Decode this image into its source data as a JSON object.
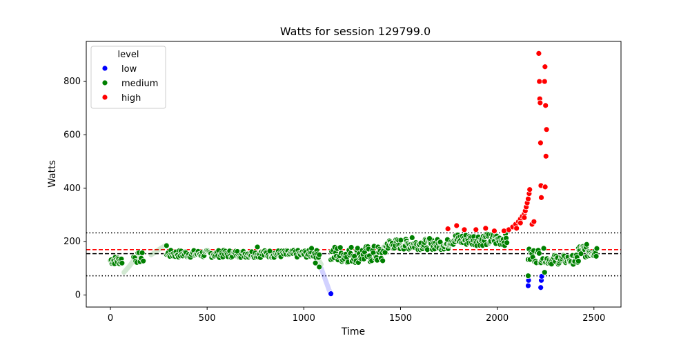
{
  "chart_data": {
    "type": "scatter",
    "title": "Watts for session 129799.0",
    "xlabel": "Time",
    "ylabel": "Watts",
    "xlim": [
      -125,
      2640
    ],
    "ylim": [
      -45,
      950
    ],
    "xticks": [
      0,
      500,
      1000,
      1500,
      2000,
      2500
    ],
    "yticks": [
      0,
      200,
      400,
      600,
      800
    ],
    "grid": false,
    "legend": {
      "title": "level",
      "placement": "top-left",
      "entries": [
        {
          "label": "low",
          "color": "#0000ff"
        },
        {
          "label": "medium",
          "color": "#008000"
        },
        {
          "label": "high",
          "color": "#ff0000"
        }
      ]
    },
    "reference_lines": [
      {
        "y": 233,
        "color": "#000000",
        "style": "dotted"
      },
      {
        "y": 170,
        "color": "#ff0000",
        "style": "dashed"
      },
      {
        "y": 155,
        "color": "#000000",
        "style": "dashed"
      },
      {
        "y": 72,
        "color": "#000000",
        "style": "dotted"
      }
    ],
    "faded_trails": [
      {
        "level": "medium",
        "points": [
          [
            70,
            85
          ],
          [
            100,
            110
          ],
          [
            130,
            140
          ],
          [
            150,
            150
          ]
        ]
      },
      {
        "level": "medium",
        "points": [
          [
            210,
            150
          ],
          [
            260,
            175
          ],
          [
            290,
            188
          ]
        ]
      },
      {
        "level": "medium",
        "points": [
          [
            1050,
            155
          ],
          [
            1070,
            140
          ],
          [
            1090,
            115
          ]
        ]
      },
      {
        "level": "low",
        "points": [
          [
            1090,
            100
          ],
          [
            1110,
            60
          ],
          [
            1130,
            20
          ],
          [
            1140,
            5
          ]
        ]
      }
    ],
    "series": [
      {
        "name": "low",
        "color": "#0000ff",
        "points": [
          [
            1140,
            5
          ],
          [
            2160,
            35
          ],
          [
            2162,
            55
          ],
          [
            2225,
            28
          ],
          [
            2228,
            55
          ],
          [
            2230,
            70
          ]
        ]
      },
      {
        "name": "medium",
        "color": "#008000",
        "segments": [
          {
            "x0": 0,
            "x1": 60,
            "y0": 115,
            "y1": 145,
            "n": 18
          },
          {
            "x0": 120,
            "x1": 170,
            "y0": 120,
            "y1": 160,
            "n": 10
          },
          {
            "x0": 290,
            "x1": 1080,
            "y0": 140,
            "y1": 168,
            "n": 180
          },
          {
            "x0": 1140,
            "x1": 1420,
            "y0": 120,
            "y1": 185,
            "n": 70
          },
          {
            "x0": 1420,
            "x1": 1750,
            "y0": 170,
            "y1": 210,
            "n": 90
          },
          {
            "x0": 1750,
            "x1": 2050,
            "y0": 185,
            "y1": 230,
            "n": 80
          },
          {
            "x0": 2160,
            "x1": 2250,
            "y0": 120,
            "y1": 175,
            "n": 20
          },
          {
            "x0": 2250,
            "x1": 2420,
            "y0": 115,
            "y1": 150,
            "n": 45
          },
          {
            "x0": 2420,
            "x1": 2515,
            "y0": 140,
            "y1": 190,
            "n": 30
          }
        ],
        "points": [
          [
            290,
            185
          ],
          [
            760,
            180
          ],
          [
            1040,
            175
          ],
          [
            1060,
            120
          ],
          [
            1080,
            105
          ],
          [
            2160,
            72
          ],
          [
            2245,
            85
          ],
          [
            1560,
            215
          ],
          [
            1650,
            212
          ]
        ]
      },
      {
        "name": "high",
        "color": "#ff0000",
        "points": [
          [
            1745,
            248
          ],
          [
            1790,
            260
          ],
          [
            1830,
            245
          ],
          [
            1890,
            245
          ],
          [
            1940,
            250
          ],
          [
            1985,
            240
          ],
          [
            2035,
            240
          ],
          [
            2060,
            245
          ],
          [
            2080,
            255
          ],
          [
            2095,
            265
          ],
          [
            2110,
            275
          ],
          [
            2120,
            285
          ],
          [
            2130,
            295
          ],
          [
            2140,
            305
          ],
          [
            2145,
            315
          ],
          [
            2150,
            330
          ],
          [
            2155,
            345
          ],
          [
            2160,
            360
          ],
          [
            2165,
            380
          ],
          [
            2168,
            395
          ],
          [
            2100,
            250
          ],
          [
            2180,
            265
          ],
          [
            2190,
            275
          ],
          [
            2120,
            270
          ],
          [
            2140,
            290
          ],
          [
            2215,
            905
          ],
          [
            2218,
            800
          ],
          [
            2220,
            735
          ],
          [
            2222,
            720
          ],
          [
            2224,
            570
          ],
          [
            2226,
            410
          ],
          [
            2228,
            365
          ],
          [
            2245,
            800
          ],
          [
            2247,
            855
          ],
          [
            2250,
            710
          ],
          [
            2252,
            520
          ],
          [
            2255,
            620
          ],
          [
            2248,
            405
          ]
        ]
      }
    ]
  }
}
